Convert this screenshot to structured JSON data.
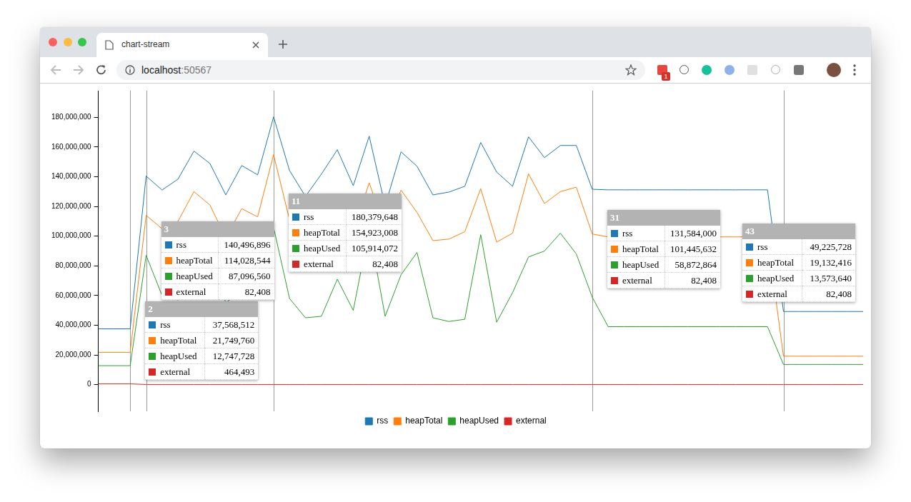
{
  "browser": {
    "tab_title": "chart-stream",
    "url": "localhost:50567",
    "badge": "1"
  },
  "chart_data": {
    "type": "line",
    "x": [
      0,
      1,
      2,
      3,
      4,
      5,
      6,
      7,
      8,
      9,
      10,
      11,
      12,
      13,
      14,
      15,
      16,
      17,
      18,
      19,
      20,
      21,
      22,
      23,
      24,
      25,
      26,
      27,
      28,
      29,
      30,
      31,
      32,
      33,
      34,
      35,
      36,
      37,
      38,
      39,
      40,
      41,
      42,
      43,
      44,
      45,
      46,
      47,
      48
    ],
    "xlim": [
      0,
      48
    ],
    "ylim": [
      -18000000,
      198000000
    ],
    "yticks": [
      0,
      {
        "value": 20000000,
        "label": "20,000,000"
      },
      {
        "value": 40000000,
        "label": "40,000,000"
      },
      {
        "value": 60000000,
        "label": "60,000,000"
      },
      {
        "value": 80000000,
        "label": "80,000,000"
      },
      {
        "value": 100000000,
        "label": "100,000,000"
      },
      {
        "value": 120000000,
        "label": "120,000,000"
      },
      {
        "value": 140000000,
        "label": "140,000,000"
      },
      {
        "value": 160000000,
        "label": "160,000,000"
      },
      {
        "value": 180000000,
        "label": "180,000,000"
      }
    ],
    "grid": false,
    "legend": "bottom",
    "tick_labels": "y",
    "series": [
      {
        "name": "rss",
        "color": "#1f77b4",
        "values": [
          37568512,
          37568512,
          37568512,
          140496896,
          131100000,
          138400000,
          157300000,
          149000000,
          127800000,
          147600000,
          141300000,
          180379648,
          144200000,
          126800000,
          141800000,
          158200000,
          134000000,
          167400000,
          120500000,
          156800000,
          147100000,
          127800000,
          129700000,
          133600000,
          163100000,
          143200000,
          133600000,
          166900000,
          152900000,
          161100000,
          161100000,
          131584000,
          131200000,
          131200000,
          131200000,
          131200000,
          131200000,
          131200000,
          131200000,
          131200000,
          131200000,
          131200000,
          131200000,
          49225728,
          49225728,
          49225728,
          49225728,
          49225728,
          49225728
        ]
      },
      {
        "name": "heapTotal",
        "color": "#ff7f0e",
        "values": [
          21749760,
          21749760,
          21749760,
          114028544,
          105000000,
          110000000,
          130000000,
          121000000,
          99000000,
          118500000,
          113000000,
          154923008,
          111000000,
          96000000,
          100000000,
          128000000,
          103000000,
          136000000,
          105000000,
          131000000,
          116000000,
          97000000,
          98000000,
          103000000,
          132000000,
          96000000,
          102000000,
          142000000,
          122000000,
          130000000,
          133000000,
          101445632,
          99500000,
          99500000,
          99500000,
          99500000,
          99500000,
          99500000,
          99500000,
          99500000,
          99500000,
          99500000,
          99500000,
          19132416,
          19132416,
          19132416,
          19132416,
          19132416,
          19132416
        ]
      },
      {
        "name": "heapUsed",
        "color": "#2ca02c",
        "values": [
          12747728,
          12747728,
          12747728,
          87096560,
          60000000,
          57000000,
          100000000,
          89000000,
          55000000,
          64000000,
          82000000,
          105914072,
          58000000,
          45000000,
          46000000,
          71000000,
          50000000,
          105000000,
          46000000,
          74000000,
          89000000,
          45000000,
          42500000,
          44000000,
          101000000,
          42000000,
          62000000,
          86000000,
          90000000,
          102000000,
          88000000,
          58872864,
          39000000,
          39000000,
          39000000,
          39000000,
          39000000,
          39000000,
          39000000,
          39000000,
          39000000,
          39000000,
          39000000,
          13573640,
          13573640,
          13573640,
          13573640,
          13573640,
          13573640
        ]
      },
      {
        "name": "external",
        "color": "#d62728",
        "values": [
          464493,
          464493,
          464493,
          82408,
          82408,
          82408,
          82408,
          82408,
          82408,
          82408,
          82408,
          82408,
          82408,
          82408,
          82408,
          82408,
          82408,
          82408,
          82408,
          82408,
          82408,
          82408,
          82408,
          82408,
          82408,
          82408,
          82408,
          82408,
          82408,
          82408,
          82408,
          82408,
          82408,
          82408,
          82408,
          82408,
          82408,
          82408,
          82408,
          82408,
          82408,
          82408,
          82408,
          82408,
          82408,
          82408,
          82408,
          82408,
          82408
        ]
      }
    ],
    "tooltips": [
      {
        "x": 2,
        "value_labels": [
          "37,568,512",
          "21,749,760",
          "12,747,728",
          "464,493"
        ]
      },
      {
        "x": 3,
        "value_labels": [
          "140,496,896",
          "114,028,544",
          "87,096,560",
          "82,408"
        ]
      },
      {
        "x": 11,
        "value_labels": [
          "180,379,648",
          "154,923,008",
          "105,914,072",
          "82,408"
        ]
      },
      {
        "x": 31,
        "value_labels": [
          "131,584,000",
          "101,445,632",
          "58,872,864",
          "82,408"
        ]
      },
      {
        "x": 43,
        "value_labels": [
          "49,225,728",
          "19,132,416",
          "13,573,640",
          "82,408"
        ]
      }
    ]
  }
}
